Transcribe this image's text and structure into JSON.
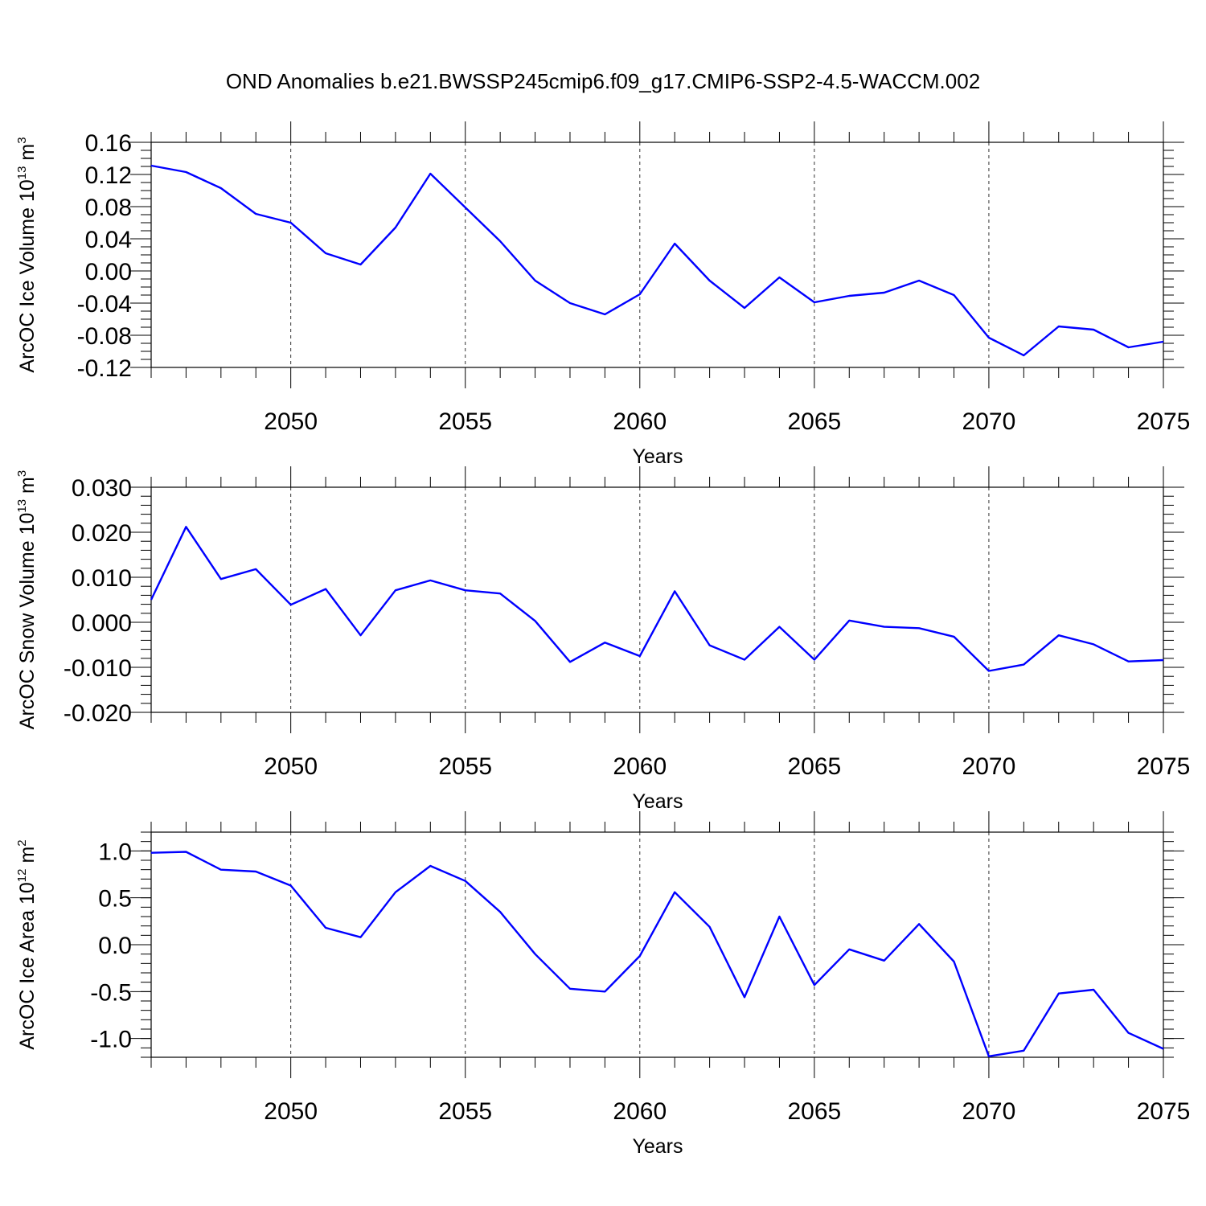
{
  "title": "OND Anomalies b.e21.BWSSP245cmip6.f09_g17.CMIP6-SSP2-4.5-WACCM.002",
  "colors": {
    "line": "#0000ff",
    "axis": "#000000",
    "grid": "#000000"
  },
  "chart_data": [
    {
      "type": "line",
      "ylabel": {
        "main": "ArcOC Ice Volume 10",
        "sup": "13",
        "unit": " m",
        "unit_sup": "3"
      },
      "xlabel": "Years",
      "xlim": [
        2046,
        2075
      ],
      "ylim": [
        -0.12,
        0.16
      ],
      "yticks": [
        "0.16",
        "0.12",
        "0.08",
        "0.04",
        "0.00",
        "-0.04",
        "-0.08",
        "-0.12"
      ],
      "ytick_values": [
        0.16,
        0.12,
        0.08,
        0.04,
        0.0,
        -0.04,
        -0.08,
        -0.12
      ],
      "yminor_step": 0.01,
      "xticks": [
        "2050",
        "2055",
        "2060",
        "2065",
        "2070",
        "2075"
      ],
      "xtick_values": [
        2050,
        2055,
        2060,
        2065,
        2070,
        2075
      ],
      "grid": "x-dashed",
      "x": [
        2046,
        2047,
        2048,
        2049,
        2050,
        2051,
        2052,
        2053,
        2054,
        2055,
        2056,
        2057,
        2058,
        2059,
        2060,
        2061,
        2062,
        2063,
        2064,
        2065,
        2066,
        2067,
        2068,
        2069,
        2070,
        2071,
        2072,
        2073,
        2074,
        2075
      ],
      "values": [
        0.131,
        0.123,
        0.103,
        0.071,
        0.06,
        0.022,
        0.008,
        0.054,
        0.121,
        0.079,
        0.037,
        -0.012,
        -0.04,
        -0.054,
        -0.029,
        0.034,
        -0.012,
        -0.046,
        -0.008,
        -0.039,
        -0.031,
        -0.027,
        -0.012,
        -0.03,
        -0.083,
        -0.105,
        -0.069,
        -0.073,
        -0.095,
        -0.088
      ]
    },
    {
      "type": "line",
      "ylabel": {
        "main": "ArcOC Snow Volume 10",
        "sup": "13",
        "unit": " m",
        "unit_sup": "3"
      },
      "xlabel": "Years",
      "xlim": [
        2046,
        2075
      ],
      "ylim": [
        -0.02,
        0.03
      ],
      "yticks": [
        "0.030",
        "0.020",
        "0.010",
        "0.000",
        "-0.010",
        "-0.020"
      ],
      "ytick_values": [
        0.03,
        0.02,
        0.01,
        0.0,
        -0.01,
        -0.02
      ],
      "yminor_step": 0.002,
      "xticks": [
        "2050",
        "2055",
        "2060",
        "2065",
        "2070",
        "2075"
      ],
      "xtick_values": [
        2050,
        2055,
        2060,
        2065,
        2070,
        2075
      ],
      "grid": "x-dashed",
      "x": [
        2046,
        2047,
        2048,
        2049,
        2050,
        2051,
        2052,
        2053,
        2054,
        2055,
        2056,
        2057,
        2058,
        2059,
        2060,
        2061,
        2062,
        2063,
        2064,
        2065,
        2066,
        2067,
        2068,
        2069,
        2070,
        2071,
        2072,
        2073,
        2074,
        2075
      ],
      "values": [
        0.005,
        0.0212,
        0.0096,
        0.0118,
        0.0039,
        0.0074,
        -0.0029,
        0.0071,
        0.0093,
        0.0071,
        0.0064,
        0.0003,
        -0.0088,
        -0.0045,
        -0.0075,
        0.0069,
        -0.0051,
        -0.0083,
        -0.001,
        -0.0083,
        0.0004,
        -0.001,
        -0.0013,
        -0.0032,
        -0.0108,
        -0.0094,
        -0.0029,
        -0.0049,
        -0.0087,
        -0.0084
      ]
    },
    {
      "type": "line",
      "ylabel": {
        "main": "ArcOC Ice Area 10",
        "sup": "12",
        "unit": " m",
        "unit_sup": "2"
      },
      "xlabel": "Years",
      "xlim": [
        2046,
        2075
      ],
      "ylim": [
        -1.2,
        1.2
      ],
      "yticks": [
        "1.0",
        "0.5",
        "0.0",
        "-0.5",
        "-1.0"
      ],
      "ytick_values": [
        1.0,
        0.5,
        0.0,
        -0.5,
        -1.0
      ],
      "yminor_step": 0.1,
      "xticks": [
        "2050",
        "2055",
        "2060",
        "2065",
        "2070",
        "2075"
      ],
      "xtick_values": [
        2050,
        2055,
        2060,
        2065,
        2070,
        2075
      ],
      "grid": "x-dashed",
      "x": [
        2046,
        2047,
        2048,
        2049,
        2050,
        2051,
        2052,
        2053,
        2054,
        2055,
        2056,
        2057,
        2058,
        2059,
        2060,
        2061,
        2062,
        2063,
        2064,
        2065,
        2066,
        2067,
        2068,
        2069,
        2070,
        2071,
        2072,
        2073,
        2074,
        2075
      ],
      "values": [
        0.98,
        0.99,
        0.8,
        0.78,
        0.63,
        0.18,
        0.08,
        0.56,
        0.84,
        0.68,
        0.35,
        -0.1,
        -0.47,
        -0.5,
        -0.12,
        0.56,
        0.19,
        -0.56,
        0.3,
        -0.43,
        -0.05,
        -0.17,
        0.22,
        -0.18,
        -1.19,
        -1.13,
        -0.52,
        -0.48,
        -0.94,
        -1.11
      ]
    }
  ]
}
